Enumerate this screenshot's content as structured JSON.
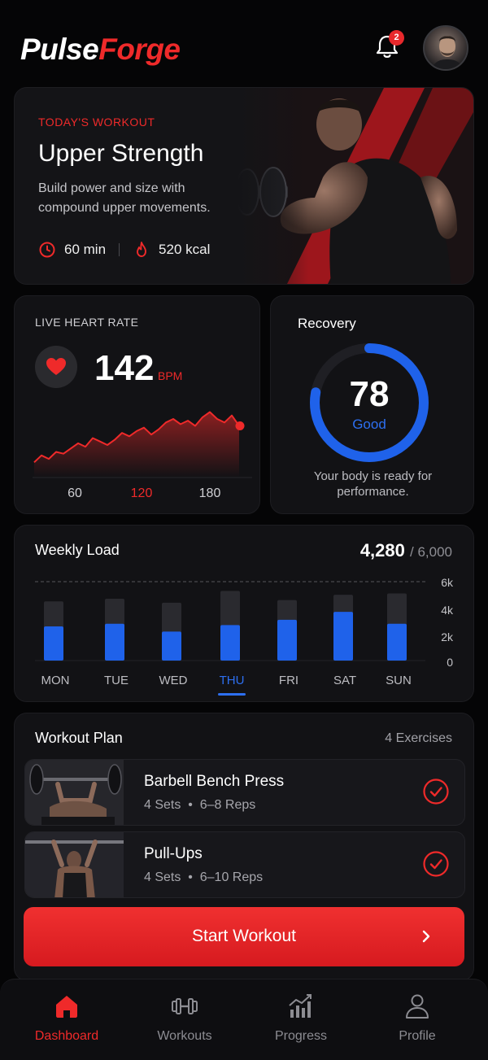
{
  "app": {
    "logo_part1": "Pulse",
    "logo_part2": "Forge",
    "notifications_count": "2",
    "accent_color": "#ef2a2a",
    "secondary_color": "#2d6ff0"
  },
  "hero": {
    "kicker": "TODAY'S WORKOUT",
    "title": "Upper Strength",
    "description": "Build power and size with compound upper movements.",
    "duration": "60 min",
    "calories": "520 kcal",
    "duration_icon": "clock-icon",
    "calories_icon": "flame-icon"
  },
  "heart_rate": {
    "title": "LIVE HEART RATE",
    "value": "142",
    "unit": "BPM",
    "ticks": [
      "60",
      "120",
      "180"
    ],
    "highlighted_tick": "120"
  },
  "recovery": {
    "title": "Recovery",
    "value": "78",
    "status": "Good",
    "description": "Your body is ready for performance.",
    "percent": 78
  },
  "weekly_load": {
    "title": "Weekly Load",
    "total": "4,280",
    "max": "/ 6,000",
    "y_ticks": [
      "6k",
      "4k",
      "2k",
      "0"
    ],
    "days": [
      "MON",
      "TUE",
      "WED",
      "THU",
      "FRI",
      "SAT",
      "SUN"
    ],
    "active_day": "THU",
    "values": [
      2.6,
      2.8,
      2.2,
      2.7,
      3.1,
      3.7,
      2.8
    ],
    "capacity": [
      4.5,
      4.7,
      4.4,
      5.3,
      4.6,
      5.0,
      5.1
    ],
    "ymax": 6
  },
  "plan": {
    "title": "Workout Plan",
    "count": "4 Exercises",
    "exercises": [
      {
        "name": "Barbell Bench Press",
        "sets": "4 Sets",
        "reps": "6–8 Reps"
      },
      {
        "name": "Pull-Ups",
        "sets": "4 Sets",
        "reps": "6–10 Reps"
      }
    ],
    "start_label": "Start Workout"
  },
  "tabs": [
    {
      "label": "Dashboard",
      "icon": "home-icon"
    },
    {
      "label": "Workouts",
      "icon": "dumbbell-icon"
    },
    {
      "label": "Progress",
      "icon": "chart-icon"
    },
    {
      "label": "Profile",
      "icon": "user-icon"
    }
  ],
  "chart_data": [
    {
      "type": "line",
      "ylabel": "",
      "xlabel": "",
      "x_ticks": [
        "60",
        "120",
        "180"
      ],
      "series": [
        {
          "values": [
            100,
            108,
            104,
            112,
            110,
            116,
            122,
            118,
            128,
            124,
            120,
            126,
            134,
            130,
            136,
            140,
            132,
            138,
            146,
            150,
            144,
            148,
            142,
            152,
            158,
            150,
            146,
            154,
            142
          ]
        }
      ]
    },
    {
      "type": "bar",
      "title": "Weekly Load",
      "categories": [
        "MON",
        "TUE",
        "WED",
        "THU",
        "FRI",
        "SAT",
        "SUN"
      ],
      "values": [
        2600,
        2800,
        2200,
        2700,
        3100,
        3700,
        2800
      ],
      "ylim": [
        0,
        6000
      ],
      "y_ticks": [
        "6k",
        "4k",
        "2k",
        "0"
      ]
    }
  ]
}
